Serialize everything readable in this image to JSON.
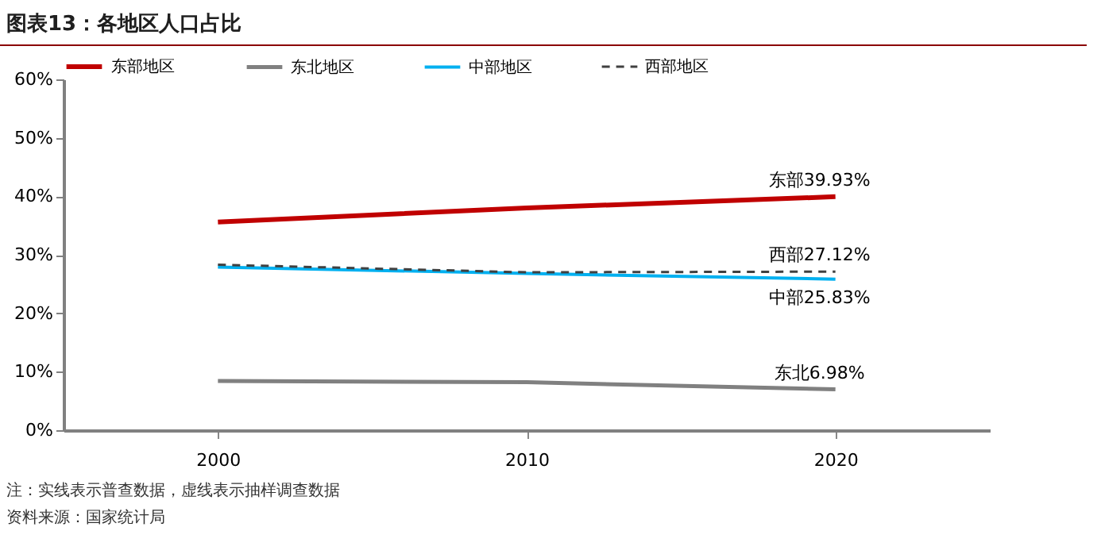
{
  "chart_data": {
    "type": "line",
    "title": "图表13：各地区人口占比",
    "categories": [
      "2000",
      "2010",
      "2020"
    ],
    "series": [
      {
        "name": "东部地区",
        "color": "#c00000",
        "values": [
          35.6,
          38.0,
          39.93
        ],
        "line_style": "solid"
      },
      {
        "name": "东北地区",
        "color": "#808080",
        "values": [
          8.4,
          8.2,
          6.98
        ],
        "line_style": "solid"
      },
      {
        "name": "中部地区",
        "color": "#00b0f0",
        "values": [
          27.9,
          26.8,
          25.83
        ],
        "line_style": "solid"
      },
      {
        "name": "西部地区",
        "color": "#404040",
        "values": [
          28.3,
          27.0,
          27.12
        ],
        "line_style": "dashed"
      }
    ],
    "ylim": [
      0,
      60
    ],
    "yticks": [
      {
        "value": 0,
        "label": "0%"
      },
      {
        "value": 10,
        "label": "10%"
      },
      {
        "value": 20,
        "label": "20%"
      },
      {
        "value": 30,
        "label": "30%"
      },
      {
        "value": 40,
        "label": "40%"
      },
      {
        "value": 50,
        "label": "50%"
      },
      {
        "value": 60,
        "label": "60%"
      }
    ],
    "grid": false,
    "legend": "top",
    "marker": "none",
    "annotations": [
      {
        "text": "东部39.93%",
        "x": "2020",
        "y": 39.93
      },
      {
        "text": "西部27.12%",
        "x": "2020",
        "y": 27.12
      },
      {
        "text": "中部25.83%",
        "x": "2020",
        "y": 25.83
      },
      {
        "text": "东北6.98%",
        "x": "2020",
        "y": 6.98
      },
      "注：实线表示普查数据，虚线表示抽样调查数据",
      "资料来源：国家统计局"
    ]
  }
}
